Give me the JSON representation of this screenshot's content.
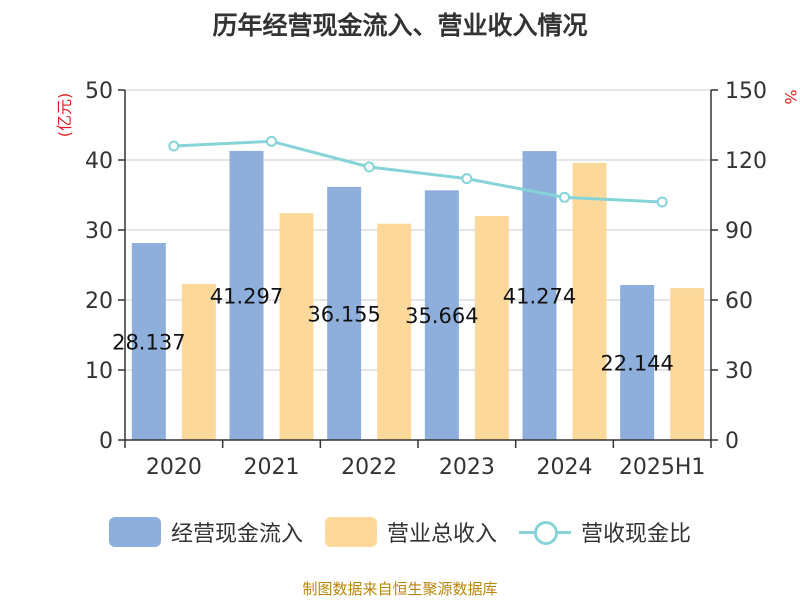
{
  "title": "历年经营现金流入、营业收入情况",
  "source": "制图数据来自恒生聚源数据库",
  "colors": {
    "cash_inflow": "#8eaedb",
    "revenue": "#fdd89b",
    "ratio": "#86d4d8",
    "unit_label": "#e02020"
  },
  "legend": [
    {
      "label": "经营现金流入",
      "icon": "bar-swatch"
    },
    {
      "label": "营业总收入",
      "icon": "bar-swatch"
    },
    {
      "label": "营收现金比",
      "icon": "line-circle-marker"
    }
  ],
  "chart_data": {
    "type": "bar",
    "title": "历年经营现金流入、营业收入情况",
    "categories": [
      "2020",
      "2021",
      "2022",
      "2023",
      "2024",
      "2025H1"
    ],
    "y_left": {
      "label": "(亿元)",
      "ylim": [
        0,
        50
      ],
      "ticks": [
        "0",
        "10",
        "20",
        "30",
        "40",
        "50"
      ]
    },
    "y_right": {
      "label": "%",
      "ylim": [
        0,
        150
      ],
      "ticks": [
        "0",
        "30",
        "60",
        "90",
        "120",
        "150"
      ]
    },
    "grid": true,
    "legend_position": "bottom",
    "series": [
      {
        "name": "经营现金流入",
        "type": "bar",
        "axis": "left",
        "values": [
          28.137,
          41.297,
          36.155,
          35.664,
          41.274,
          22.144
        ],
        "data_labels": [
          "28.137",
          "41.297",
          "36.155",
          "35.664",
          "41.274",
          "22.144"
        ]
      },
      {
        "name": "营业总收入",
        "type": "bar",
        "axis": "left",
        "values": [
          22.3,
          32.4,
          30.9,
          32.0,
          39.6,
          21.7
        ]
      },
      {
        "name": "营收现金比",
        "type": "line",
        "axis": "right",
        "values": [
          126,
          128,
          117,
          112,
          104,
          102
        ]
      }
    ]
  }
}
